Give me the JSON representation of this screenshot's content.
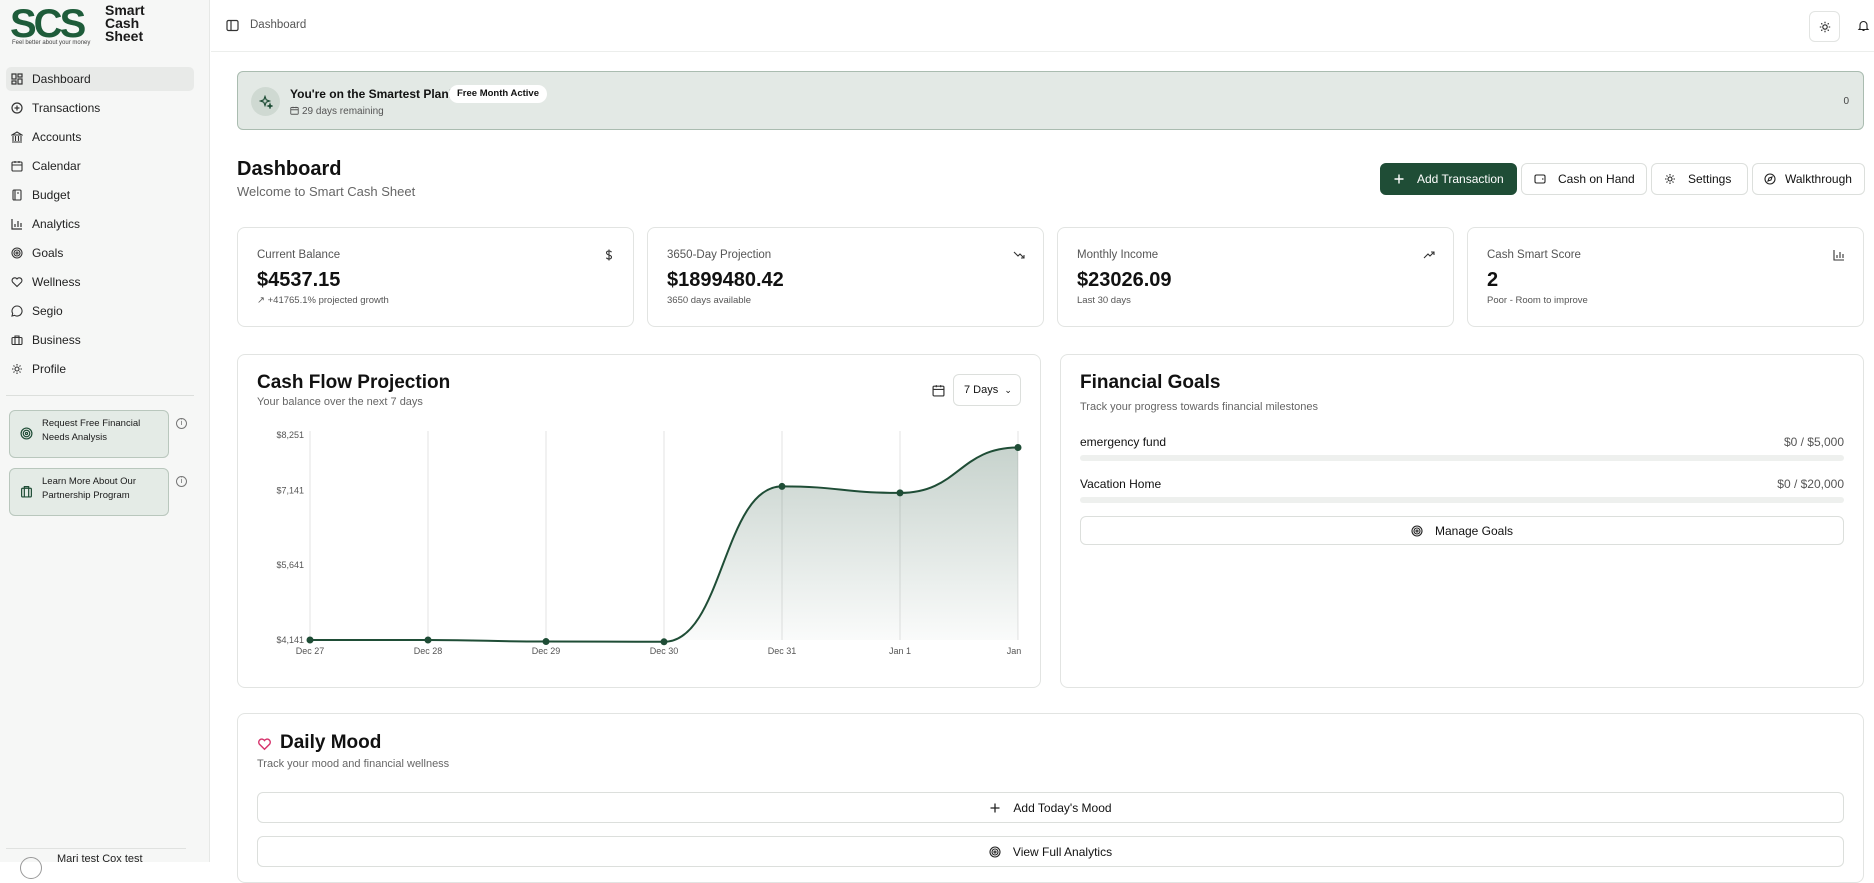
{
  "brand": {
    "mark": "SCS",
    "tagline": "Feel better about your money",
    "name_lines": [
      "Smart",
      "Cash",
      "Sheet"
    ],
    "accent": "#1f4d36"
  },
  "sidebar": {
    "items": [
      {
        "label": "Dashboard",
        "icon": "dashboard-icon",
        "active": true
      },
      {
        "label": "Transactions",
        "icon": "plus-circle-icon"
      },
      {
        "label": "Accounts",
        "icon": "bank-icon"
      },
      {
        "label": "Calendar",
        "icon": "calendar-icon"
      },
      {
        "label": "Budget",
        "icon": "notebook-icon"
      },
      {
        "label": "Analytics",
        "icon": "bar-chart-icon"
      },
      {
        "label": "Goals",
        "icon": "target-icon"
      },
      {
        "label": "Wellness",
        "icon": "heart-icon"
      },
      {
        "label": "Segio",
        "icon": "chat-icon"
      },
      {
        "label": "Business",
        "icon": "briefcase-icon"
      },
      {
        "label": "Profile",
        "icon": "gear-icon"
      }
    ],
    "promos": [
      {
        "label": "Request Free Financial Needs Analysis",
        "icon": "target-icon"
      },
      {
        "label": "Learn More About Our Partnership Program",
        "icon": "building-icon"
      }
    ],
    "user_name": "Mari test Cox test"
  },
  "topbar": {
    "breadcrumb": "Dashboard"
  },
  "banner": {
    "title": "You're on the Smartest Plan!",
    "badge": "Free Month Active",
    "remaining": "29 days remaining",
    "count": "0"
  },
  "header": {
    "title": "Dashboard",
    "subtitle": "Welcome to Smart Cash Sheet"
  },
  "actions": {
    "add_transaction": "Add Transaction",
    "cash_on_hand": "Cash on Hand",
    "settings": "Settings",
    "walkthrough": "Walkthrough"
  },
  "stats": [
    {
      "label": "Current Balance",
      "value": "$4537.15",
      "note": "+41765.1% projected growth",
      "icon": "dollar-icon"
    },
    {
      "label": "3650-Day Projection",
      "value": "$1899480.42",
      "note": "3650 days available",
      "icon": "trend-down-icon"
    },
    {
      "label": "Monthly Income",
      "value": "$23026.09",
      "note": "Last 30 days",
      "icon": "trend-up-icon"
    },
    {
      "label": "Cash Smart Score",
      "value": "2",
      "note": "Poor - Room to improve",
      "icon": "bar-chart-icon"
    }
  ],
  "cashflow": {
    "title": "Cash Flow Projection",
    "subtitle": "Your balance over the next 7 days",
    "range": "7 Days"
  },
  "chart_data": {
    "type": "area",
    "categories": [
      "Dec 27",
      "Dec 28",
      "Dec 29",
      "Dec 30",
      "Dec 31",
      "Jan 1",
      "Jan"
    ],
    "values": [
      4141,
      4141,
      4110,
      4105,
      7220,
      7090,
      8000
    ],
    "yticks": [
      "$8,251",
      "$7,141",
      "$5,641",
      "$4,141"
    ],
    "ytick_values": [
      8251,
      7141,
      5641,
      4141
    ],
    "ylim": [
      4141,
      8251
    ],
    "grid": "vertical",
    "color": "#1f4d36"
  },
  "goals": {
    "title": "Financial Goals",
    "subtitle": "Track your progress towards financial milestones",
    "items": [
      {
        "name": "emergency fund",
        "value": "$0 / $5,000",
        "progress": 0
      },
      {
        "name": "Vacation Home",
        "value": "$0 / $20,000",
        "progress": 0
      }
    ],
    "manage_label": "Manage Goals"
  },
  "mood": {
    "title": "Daily Mood",
    "subtitle": "Track your mood and financial wellness",
    "add_label": "Add Today's Mood",
    "analytics_label": "View Full Analytics"
  }
}
